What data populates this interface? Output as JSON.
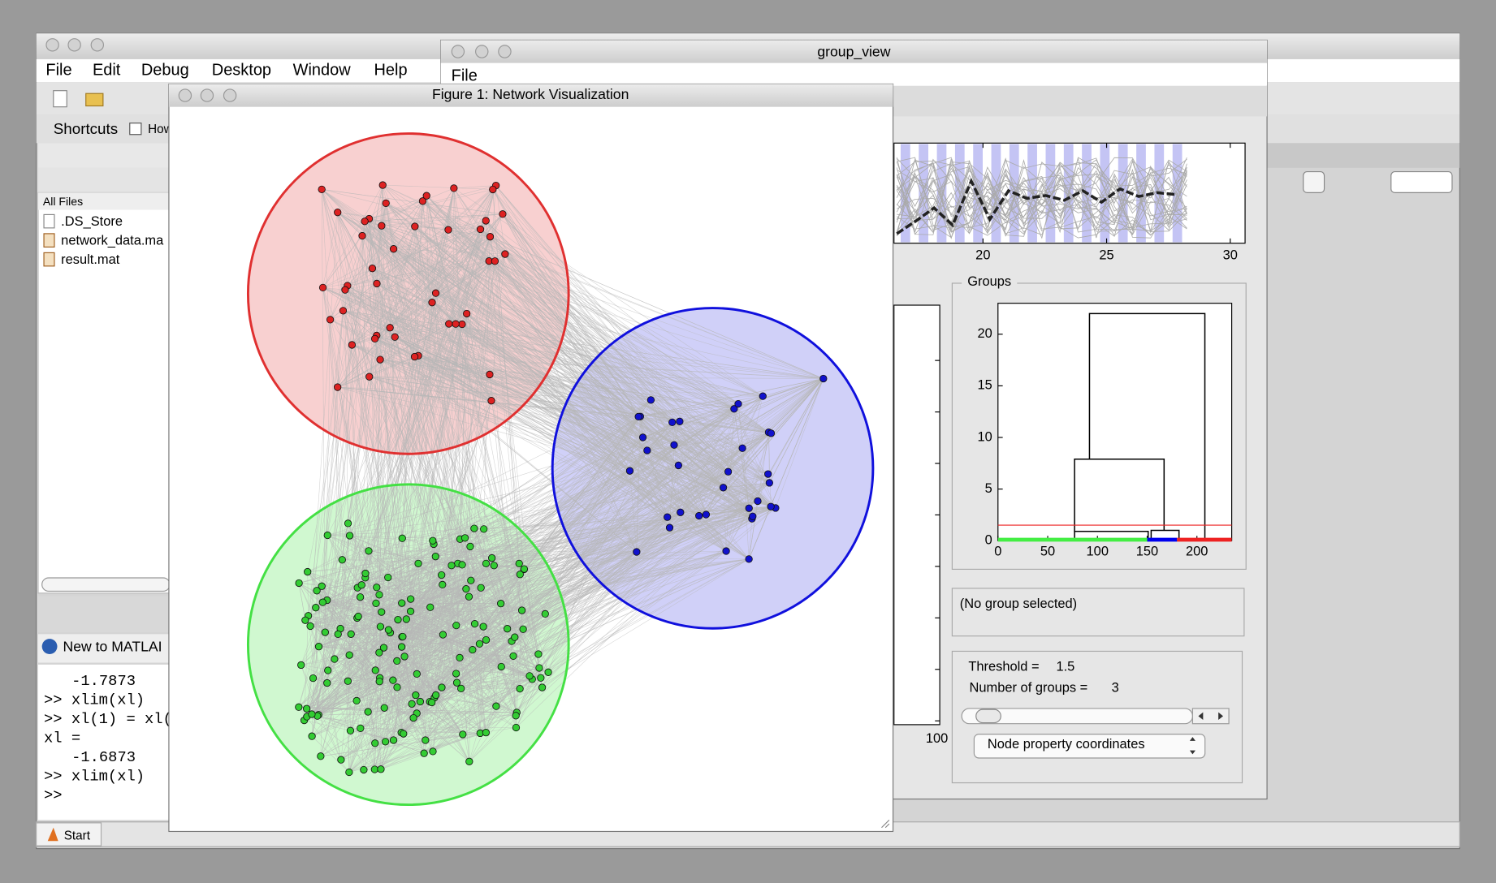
{
  "main_window": {
    "menu": [
      "File",
      "Edit",
      "Debug",
      "Desktop",
      "Window",
      "Help"
    ],
    "shortcuts": {
      "label": "Shortcuts",
      "item": "How"
    },
    "file_browser": {
      "header": "All Files",
      "files": [
        ".DS_Store",
        "network_data.ma",
        "result.mat"
      ]
    },
    "help_bar": "New to MATLAI",
    "command_window": [
      "-1.7873",
      ">> xlim(xl)",
      ">> xl(1) = xl(",
      "xl =",
      "-1.6873",
      ">> xlim(xl)",
      ">>"
    ],
    "start": "Start"
  },
  "group_view": {
    "title": "group_view",
    "menu": [
      "File"
    ],
    "top_plot": {
      "xlim": [
        16.4,
        30.6
      ],
      "xticks": [
        20,
        25,
        30
      ]
    },
    "left_plot": {
      "label": "100"
    },
    "groups_panel": {
      "title": "Groups",
      "dendrogram": {
        "xlim": [
          0,
          235
        ],
        "ylim": [
          0,
          23
        ],
        "xticks": [
          0,
          50,
          100,
          150,
          200
        ],
        "yticks": [
          0,
          5,
          10,
          15,
          20
        ],
        "links": [
          [
            92,
            208,
            22,
            7.9,
            0
          ],
          [
            77,
            167,
            7.9,
            0.9,
            1.0
          ],
          [
            77,
            151,
            0.9,
            0,
            0
          ],
          [
            154,
            182,
            1.0,
            0,
            0
          ]
        ],
        "groups": [
          {
            "color": "#44ee44",
            "range": [
              0,
              150
            ]
          },
          {
            "color": "#0000ee",
            "range": [
              150,
              180
            ]
          },
          {
            "color": "#ee2222",
            "range": [
              180,
              235
            ]
          }
        ],
        "threshold_color": "#ee2222"
      }
    },
    "selection": "(No group selected)",
    "threshold": {
      "label": "Threshold =",
      "value": 1.5
    },
    "groups_count": {
      "label": "Number of groups =",
      "value": 3
    },
    "popup": "Node property coordinates"
  },
  "figure": {
    "title": "Figure 1: Network Visualization"
  }
}
